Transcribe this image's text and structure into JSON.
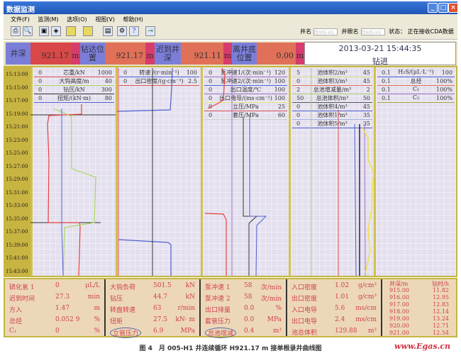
{
  "window": {
    "title": "数据监测",
    "controls": [
      "minimize",
      "maximize",
      "close"
    ]
  },
  "menu": [
    "文件(F)",
    "监测(M)",
    "选项(O)",
    "视图(V)",
    "帮助(H)"
  ],
  "toolbar": {
    "icons": [
      "print-icon",
      "print-preview-icon",
      "save-icon",
      "refresh-icon",
      "note-icon",
      "note2-icon",
      "image-icon",
      "settings-icon",
      "help-icon",
      "exit-icon"
    ],
    "well_label": "井名",
    "well_value": "月005-H1",
    "borehole_label": "井眼名",
    "borehole_value": "月005-H1",
    "status_label": "状态：",
    "status_value": "正在接收CDA数据"
  },
  "header": {
    "items": [
      {
        "label": "井深",
        "value": "921.17",
        "unit": "m"
      },
      {
        "label": "钻达位置",
        "value": "921.17",
        "unit": "m"
      },
      {
        "label": "迟到井深",
        "value": "921.11",
        "unit": "m"
      },
      {
        "label": "离井底位置",
        "value": "0.00",
        "unit": "m"
      }
    ],
    "datetime": "2013-03-21 15:44:35",
    "state": "钻进"
  },
  "time_axis": [
    "15:13:00",
    "15:15:00",
    "15:17:00",
    "15:19:00",
    "15:21:00",
    "15:23:00",
    "15:25:00",
    "15:27:00",
    "15:29:00",
    "15:31:00",
    "15:33:00",
    "15:35:00",
    "15:37:00",
    "15:39:00",
    "15:41:00",
    "15:43:00"
  ],
  "tracks": [
    {
      "rows": [
        {
          "min": "0",
          "label": "芯重/kN",
          "max": "1000",
          "color": "#e05050"
        },
        {
          "min": "0",
          "label": "大钩高度/m",
          "max": "40",
          "color": "#a8d060"
        },
        {
          "min": "0",
          "label": "钻压/kN",
          "max": "300",
          "color": "#333333"
        },
        {
          "min": "0",
          "label": "扭矩/(kN·m)",
          "max": "80",
          "color": "#5060d0"
        }
      ]
    },
    {
      "rows": [
        {
          "min": "0",
          "label": "转速 /(r·min⁻¹)",
          "max": "100",
          "color": "#5060d0"
        },
        {
          "min": "0",
          "label": "出口密度/(g·cm⁻³)",
          "max": "2.5",
          "color": "#e05050"
        }
      ]
    },
    {
      "rows": [
        {
          "min": "0",
          "label": "泵冲速1/(次·min⁻¹)",
          "max": "120",
          "color": "#a070c0"
        },
        {
          "min": "0",
          "label": "泵冲速2/(次·min⁻¹)",
          "max": "100",
          "color": "#5060d0"
        },
        {
          "min": "0",
          "label": "出口温度/℃",
          "max": "100",
          "color": "#a070c0"
        },
        {
          "min": "0",
          "label": "出口电导/(ms·cm⁻¹)",
          "max": "100",
          "color": "#e0e080"
        },
        {
          "min": "0",
          "label": "立压/MPa",
          "max": "25",
          "color": "#e05050"
        },
        {
          "min": "0",
          "label": "套压/MPa",
          "max": "60",
          "color": "#cccccc"
        }
      ]
    },
    {
      "rows": [
        {
          "min": "5",
          "label": "池体积2/m³",
          "max": "45",
          "color": "#e0e080"
        },
        {
          "min": "0",
          "label": "池体积3/m³",
          "max": "45",
          "color": "#e07050"
        },
        {
          "min": "2",
          "label": "总池增减量/m³",
          "max": "2",
          "color": "#a8d060"
        },
        {
          "min": "50",
          "label": "总池体积/m³",
          "max": "50",
          "color": "#555555"
        },
        {
          "min": "0",
          "label": "池体积4/m³",
          "max": "45",
          "color": "#5060d0"
        },
        {
          "min": "0",
          "label": "池体积1/m³",
          "max": "35",
          "color": "#a0b0e0"
        },
        {
          "min": "0",
          "label": "池体积5/m³",
          "max": "35",
          "color": "#5060d0"
        }
      ]
    },
    {
      "rows": [
        {
          "min": "0.1",
          "label": "H₂S/(μL·L⁻¹)",
          "max": "100",
          "color": "#5060d0"
        },
        {
          "min": "0.1",
          "label": "总烃",
          "max": "100%",
          "color": "#e07050"
        },
        {
          "min": "0.1",
          "label": "C₁",
          "max": "100%",
          "color": "#a070c0"
        },
        {
          "min": "0.1",
          "label": "C₂",
          "max": "100%",
          "color": "#a8a040"
        }
      ]
    }
  ],
  "panels": [
    [
      {
        "name": "硫化氢 1",
        "value": "0",
        "unit": "μL/L"
      },
      {
        "name": "迟到时间",
        "value": "27.3",
        "unit": "min"
      },
      {
        "name": "方入",
        "value": "1.47",
        "unit": "m"
      },
      {
        "name": "总烃",
        "value": "0.052 9",
        "unit": "%"
      },
      {
        "name": "C₁",
        "value": "0",
        "unit": "%"
      }
    ],
    [
      {
        "name": "大钩负荷",
        "value": "501.5",
        "unit": "kN"
      },
      {
        "name": "钻压",
        "value": "44.7",
        "unit": "kN"
      },
      {
        "name": "转盘转速",
        "value": "63",
        "unit": "r/min"
      },
      {
        "name": "扭矩",
        "value": "27.5",
        "unit": "kN· m"
      },
      {
        "name": "立管压力",
        "value": "6.9",
        "unit": "MPa"
      }
    ],
    [
      {
        "name": "泵冲速 1",
        "value": "58",
        "unit": "次/min"
      },
      {
        "name": "泵冲速 2",
        "value": "58",
        "unit": "次/min"
      },
      {
        "name": "出口排量",
        "value": "0.0",
        "unit": "%"
      },
      {
        "name": "套管压力",
        "value": "0.0",
        "unit": "MPa"
      },
      {
        "name": "总池增减",
        "value": "0.4",
        "unit": "m³"
      }
    ],
    [
      {
        "name": "入口密度",
        "value": "1.02",
        "unit": "g/cm³"
      },
      {
        "name": "出口密度",
        "value": "1.01",
        "unit": "g/cm³"
      },
      {
        "name": "入口电导",
        "value": "5.6",
        "unit": "ms/cm"
      },
      {
        "name": "出口电导",
        "value": "2.4",
        "unit": "ms/cm"
      },
      {
        "name": "池总体积",
        "value": "129.88",
        "unit": "m³"
      }
    ]
  ],
  "drill_time": {
    "headers": [
      "井深/m",
      "钻时/h"
    ],
    "rows": [
      [
        "915.00",
        "11.82"
      ],
      [
        "916.00",
        "12.95"
      ],
      [
        "917.00",
        "12.83"
      ],
      [
        "918.00",
        "12.14"
      ],
      [
        "919.00",
        "13.24"
      ],
      [
        "920.00",
        "12.71"
      ],
      [
        "921.00",
        "12.54"
      ]
    ]
  },
  "caption": "图 4　月 005-H1 井连续循环 H921.17 m 接单根录井曲线图",
  "watermark": "www.Egas.cn"
}
